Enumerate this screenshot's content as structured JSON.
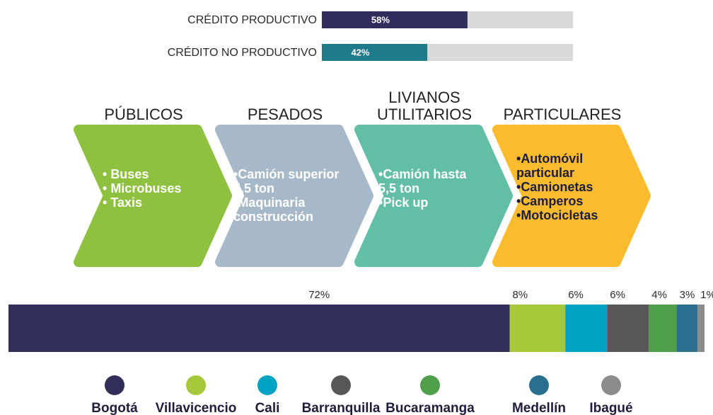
{
  "credit_bars": {
    "categories": [
      "CRÉDITO PRODUCTIVO",
      "CRÉDITO NO PRODUCTIVO"
    ],
    "values": [
      58,
      42
    ],
    "value_labels": [
      "58%",
      "42%"
    ],
    "colors": [
      "#302c5c",
      "#1f7a8c"
    ],
    "track_color": "#d9d9d9",
    "xlim": [
      0,
      100
    ]
  },
  "segments": [
    {
      "title": "PÚBLICOS",
      "color": "#8dc13f",
      "text_color": "#ffffff",
      "items": [
        "Buses",
        "Microbuses",
        "Taxis"
      ]
    },
    {
      "title": "PESADOS",
      "color": "#a7b8c8",
      "text_color": "#ffffff",
      "items": [
        "Camión superior 5,5 ton",
        "Maquinaria construcción"
      ]
    },
    {
      "title": "LIVIANOS UTILITARIOS",
      "color": "#62bfa5",
      "text_color": "#ffffff",
      "items": [
        "Camión hasta 5,5 ton",
        "Pick up"
      ]
    },
    {
      "title": "PARTICULARES",
      "color": "#fbbb2f",
      "text_color": "#1e1e3c",
      "items": [
        "Automóvil particular",
        "Camionetas",
        "Camperos",
        "Motocicletas"
      ]
    }
  ],
  "city_share": {
    "type": "stacked_bar",
    "xlim": [
      0,
      100
    ],
    "series": [
      {
        "name": "Bogotá",
        "color": "#332d5a",
        "values": [
          72
        ],
        "value_labels": [
          "72%"
        ]
      },
      {
        "name": "Villavicencio",
        "color": "#a8c83b",
        "values": [
          8
        ],
        "value_labels": [
          "8%"
        ]
      },
      {
        "name": "Cali",
        "color": "#00a3c4",
        "values": [
          6
        ],
        "value_labels": [
          "6%"
        ]
      },
      {
        "name": "Barranquilla",
        "color": "#575757",
        "values": [
          6
        ],
        "value_labels": [
          "6%"
        ]
      },
      {
        "name": "Bucaramanga",
        "color": "#4e9e4a",
        "values": [
          4
        ],
        "value_labels": [
          "4%"
        ]
      },
      {
        "name": "Medellín",
        "color": "#2a6f8e",
        "values": [
          3
        ],
        "value_labels": [
          "3%"
        ]
      },
      {
        "name": "Ibagué",
        "color": "#8c8c8c",
        "values": [
          1
        ],
        "value_labels": [
          "1%"
        ]
      }
    ]
  }
}
